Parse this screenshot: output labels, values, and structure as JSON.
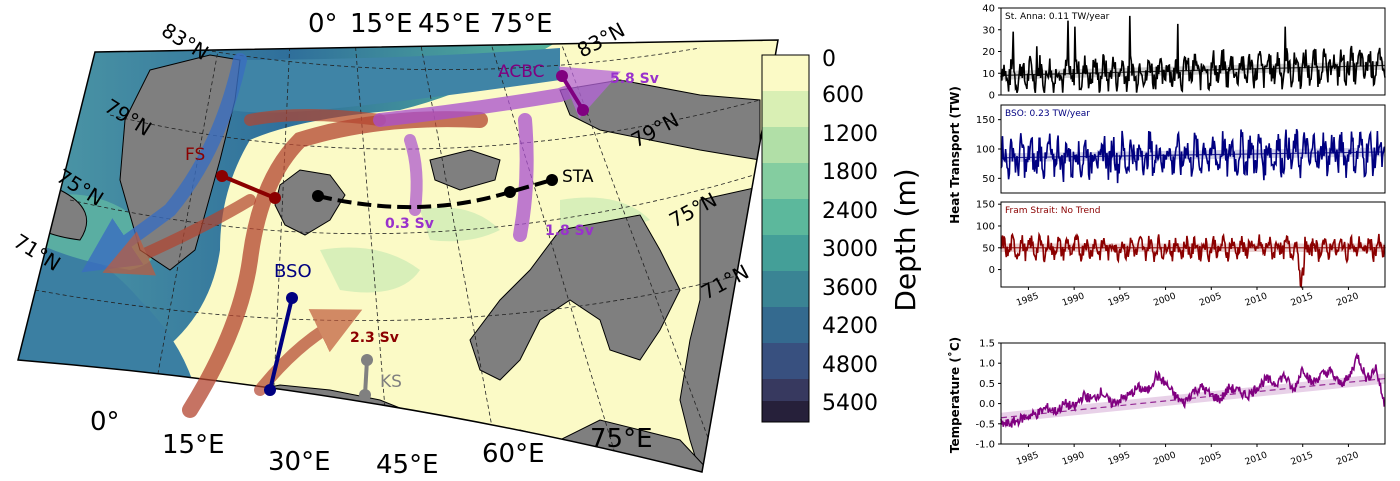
{
  "map": {
    "lat_labels": [
      "83°N",
      "79°N",
      "75°N",
      "71°N"
    ],
    "lat_labels_right": [
      "83°N",
      "79°N",
      "75°N",
      "71°N"
    ],
    "lon_labels_top": [
      "0°",
      "15°E",
      "45°E",
      "75°E"
    ],
    "lon_labels_bottom": [
      "0°",
      "15°E",
      "30°E",
      "45°E",
      "60°E",
      "75°E"
    ],
    "sections": {
      "fs": "FS",
      "bso": "BSO",
      "ks": "KS",
      "sta": "STA",
      "acbc": "ACBC"
    },
    "flows": {
      "acbc": "5.8 Sv",
      "central": "0.3 Sv",
      "sta": "1.8 Sv",
      "bso": "2.3 Sv"
    },
    "colors": {
      "land": "#7f7f7f",
      "shelf": "#fbfac6",
      "atlantic": "#b3442f",
      "arctic_branch": "#a94fcf",
      "polar": "#3a6ec0",
      "fs_line": "#8b0000",
      "bso_line": "#000080",
      "ks_line": "#808080",
      "sta_line": "#000000",
      "acbc_line": "#800080"
    }
  },
  "colorbar": {
    "label": "Depth (m)",
    "ticks": [
      "0",
      "600",
      "1200",
      "1800",
      "2400",
      "3000",
      "3600",
      "4200",
      "4800",
      "5400"
    ]
  },
  "chart_data": [
    {
      "type": "line",
      "annotation": "St. Anna: 0.11 TW/year",
      "color": "#000000",
      "ylim": [
        0,
        40
      ],
      "yticks": [
        "0",
        "10",
        "20",
        "30",
        "40"
      ],
      "xlim": [
        1982,
        2024
      ],
      "trend": {
        "x": [
          1982,
          2024
        ],
        "y": [
          9,
          13.6
        ]
      }
    },
    {
      "type": "line",
      "annotation": "BSO: 0.23 TW/year",
      "color": "#000080",
      "ylim": [
        25,
        175
      ],
      "yticks": [
        "50",
        "100",
        "150"
      ],
      "xlim": [
        1982,
        2024
      ],
      "trend": {
        "x": [
          1982,
          2024
        ],
        "y": [
          85,
          95
        ]
      }
    },
    {
      "type": "line",
      "annotation": "Fram Strait: No Trend",
      "color": "#8b0000",
      "ylim": [
        -40,
        155
      ],
      "yticks": [
        "0",
        "50",
        "100",
        "150"
      ],
      "xlim": [
        1982,
        2024
      ],
      "trend": {
        "x": [
          1982,
          2024
        ],
        "y": [
          50,
          50
        ]
      }
    },
    {
      "type": "line",
      "color": "#800080",
      "ylabel": "Temperature (˚C)",
      "ylim": [
        -1.0,
        1.5
      ],
      "yticks": [
        "1.5",
        "1.0",
        "0.5",
        "0.0",
        "-0.5",
        "-1.0"
      ],
      "xlim": [
        1982,
        2024
      ],
      "xticks": [
        "1985",
        "1990",
        "1995",
        "2000",
        "2005",
        "2010",
        "2015",
        "2020"
      ],
      "trend": {
        "x": [
          1982,
          2024
        ],
        "y": [
          -0.35,
          0.62
        ]
      },
      "series_points": {
        "x": [
          1982,
          1983,
          1984,
          1985,
          1986,
          1987,
          1988,
          1989,
          1990,
          1991,
          1992,
          1993,
          1994,
          1995,
          1996,
          1997,
          1998,
          1999,
          2000,
          2001,
          2002,
          2003,
          2004,
          2005,
          2006,
          2007,
          2008,
          2009,
          2010,
          2011,
          2012,
          2013,
          2014,
          2015,
          2016,
          2017,
          2018,
          2019,
          2020,
          2021,
          2022,
          2023,
          2024
        ],
        "y": [
          -0.5,
          -0.5,
          -0.4,
          -0.3,
          -0.25,
          -0.1,
          -0.2,
          0.0,
          -0.1,
          0.2,
          0.1,
          0.3,
          0.0,
          0.1,
          0.2,
          0.4,
          0.3,
          0.7,
          0.5,
          0.2,
          0.0,
          0.3,
          0.4,
          0.2,
          0.1,
          0.4,
          0.3,
          0.2,
          0.4,
          0.6,
          0.5,
          0.7,
          0.3,
          0.9,
          0.5,
          0.7,
          0.8,
          0.5,
          0.6,
          1.2,
          0.6,
          0.9,
          -0.1
        ]
      }
    }
  ],
  "ylabel_heat": "Heat Transport (TW)",
  "heat_xticks": [
    "1985",
    "1990",
    "1995",
    "2000",
    "2005",
    "2010",
    "2015",
    "2020"
  ]
}
